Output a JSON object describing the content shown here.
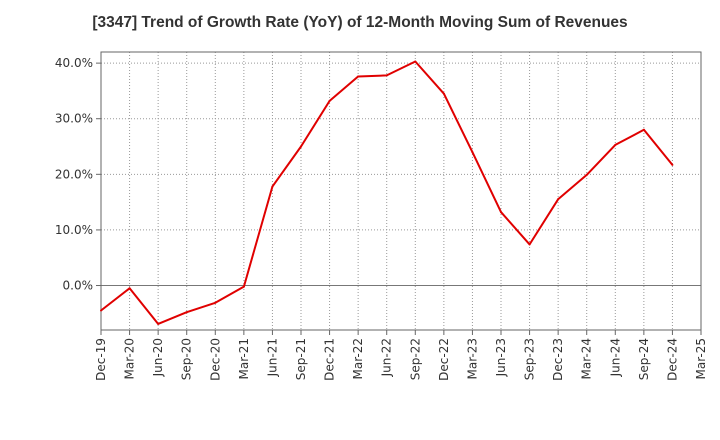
{
  "chart_data": {
    "type": "line",
    "title": "[3347]  Trend of Growth Rate (YoY) of 12-Month Moving Sum of Revenues",
    "xlabel": "",
    "ylabel": "",
    "categories": [
      "Dec-19",
      "Mar-20",
      "Jun-20",
      "Sep-20",
      "Dec-20",
      "Mar-21",
      "Jun-21",
      "Sep-21",
      "Dec-21",
      "Mar-22",
      "Jun-22",
      "Sep-22",
      "Dec-22",
      "Mar-23",
      "Jun-23",
      "Sep-23",
      "Dec-23",
      "Mar-24",
      "Jun-24",
      "Sep-24",
      "Dec-24",
      "Mar-25"
    ],
    "yticks": [
      "40.0%",
      "30.0%",
      "20.0%",
      "10.0%",
      "0.0%"
    ],
    "ylim": [
      -8.0,
      42.0
    ],
    "series": [
      {
        "color": "#e00000",
        "values": [
          -4.5,
          -0.5,
          -6.9,
          -4.8,
          -3.1,
          -0.2,
          17.8,
          25.0,
          33.2,
          37.6,
          37.8,
          40.3,
          34.5,
          24.0,
          13.2,
          7.4,
          15.5,
          19.9,
          25.3,
          28.0,
          21.7,
          null
        ]
      }
    ],
    "grid": true,
    "grid_style": "dotted",
    "zero_line": true,
    "legend": "none"
  }
}
